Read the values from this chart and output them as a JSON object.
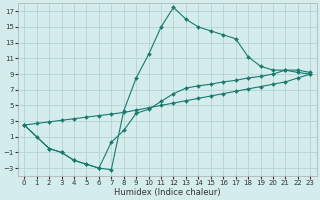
{
  "xlabel": "Humidex (Indice chaleur)",
  "background_color": "#d4ecec",
  "grid_color": "#b8d8d8",
  "line_color": "#1a7a6e",
  "xlim": [
    -0.5,
    23.5
  ],
  "ylim": [
    -4,
    18
  ],
  "xticks": [
    0,
    1,
    2,
    3,
    4,
    5,
    6,
    7,
    8,
    9,
    10,
    11,
    12,
    13,
    14,
    15,
    16,
    17,
    18,
    19,
    20,
    21,
    22,
    23
  ],
  "yticks": [
    -3,
    -1,
    1,
    3,
    5,
    7,
    9,
    11,
    13,
    15,
    17
  ],
  "series1_x": [
    0,
    1,
    2,
    3,
    4,
    5,
    6,
    7,
    8,
    9,
    10,
    11,
    12,
    13,
    14,
    15,
    16,
    17,
    18,
    19,
    20,
    21,
    22,
    23
  ],
  "series1_y": [
    2.5,
    1.0,
    -0.5,
    -1.0,
    -2.0,
    -2.5,
    -3.0,
    -3.2,
    4.3,
    8.5,
    11.5,
    15.0,
    17.5,
    16.0,
    15.0,
    14.5,
    14.0,
    13.5,
    11.2,
    10.0,
    9.5,
    9.5,
    9.2,
    9.0
  ],
  "series2_x": [
    0,
    1,
    2,
    3,
    4,
    5,
    6,
    7,
    8,
    9,
    10,
    11,
    12,
    13,
    14,
    15,
    16,
    17,
    18,
    19,
    20,
    21,
    22,
    23
  ],
  "series2_y": [
    2.5,
    2.7,
    2.9,
    3.1,
    3.3,
    3.5,
    3.7,
    3.9,
    4.1,
    4.4,
    4.7,
    5.0,
    5.3,
    5.6,
    5.9,
    6.2,
    6.5,
    6.8,
    7.1,
    7.4,
    7.7,
    8.0,
    8.5,
    9.0
  ],
  "series3_x": [
    0,
    2,
    3,
    4,
    5,
    6,
    7,
    8,
    9,
    10,
    11,
    12,
    13,
    14,
    15,
    16,
    17,
    18,
    19,
    20,
    21,
    22,
    23
  ],
  "series3_y": [
    2.5,
    -0.5,
    -1.0,
    -2.0,
    -2.5,
    -3.0,
    0.3,
    1.8,
    4.0,
    4.5,
    5.5,
    6.5,
    7.2,
    7.5,
    7.7,
    8.0,
    8.2,
    8.5,
    8.7,
    9.0,
    9.5,
    9.5,
    9.2
  ]
}
